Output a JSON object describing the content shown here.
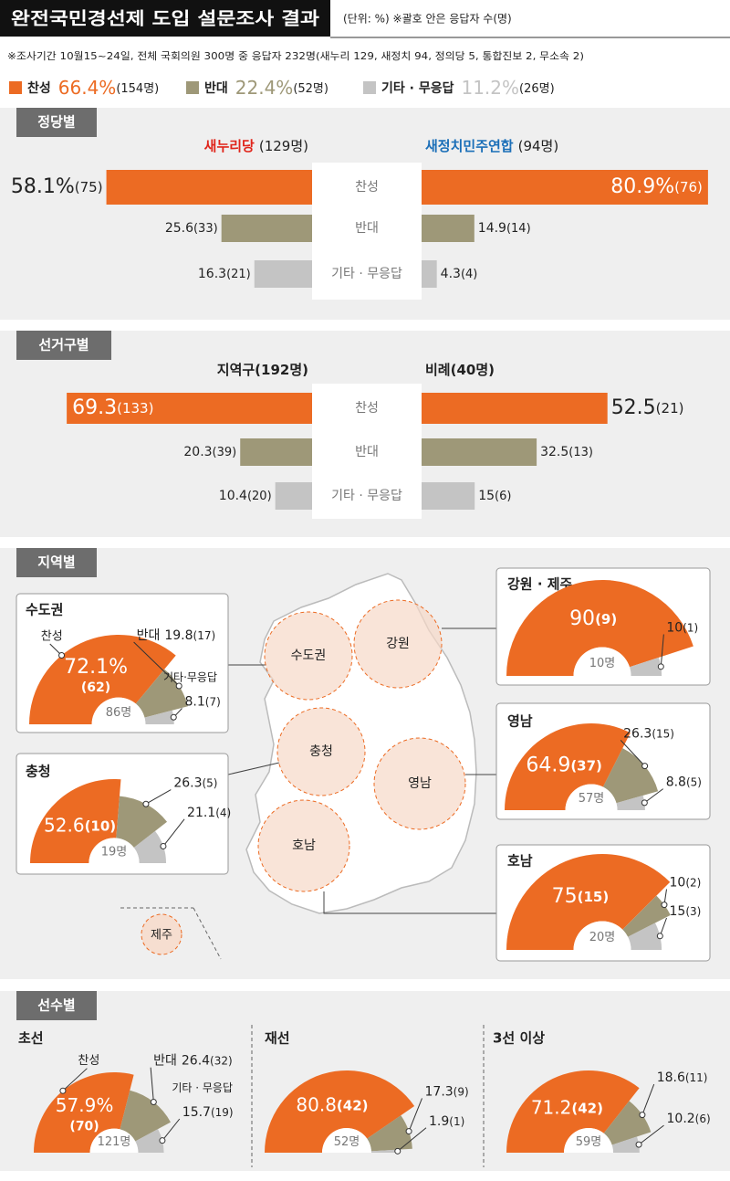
{
  "header": {
    "title": "완전국민경선제 도입 설문조사 결과",
    "unit_note": "(단위: %)  ※괄호 안은 응답자 수(명)",
    "survey_note": "※조사기간 10월15~24일, 전체 국회의원 300명 중 응답자 232명(새누리 129, 새정치 94, 정의당 5, 통합진보 2, 무소속 2)",
    "legend": [
      {
        "name": "찬성",
        "color": "#ec6b23",
        "value_label": "66.4%",
        "count_label": "(154명)"
      },
      {
        "name": "반대",
        "color": "#9e9878",
        "value_label": "22.4%",
        "count_label": "(52명)"
      },
      {
        "name": "기타 · 무응답",
        "color": "#c4c4c4",
        "value_label": "11.2%",
        "count_label": "(26명)"
      }
    ]
  },
  "sections": [
    "정당별",
    "선거구별",
    "지역별",
    "선수별"
  ],
  "map": {
    "labels": [
      "수도권",
      "강원",
      "충청",
      "영남",
      "호남",
      "제주"
    ]
  },
  "chart_data": [
    {
      "type": "butterfly",
      "categories": [
        "찬성",
        "반대",
        "기타 · 무응답"
      ],
      "colors": [
        "#ec6b23",
        "#9e9878",
        "#c4c4c4"
      ],
      "series": [
        {
          "name": "새누리당",
          "count_label": "(129명)",
          "color": "#e0251b",
          "values": [
            58.1,
            25.6,
            16.3
          ],
          "value_labels": [
            "58.1%",
            "25.6",
            "16.3"
          ],
          "count_labels": [
            "(75)",
            "(33)",
            "(21)"
          ]
        },
        {
          "name": "새정치민주연합",
          "count_label": "(94명)",
          "color": "#1b6fb8",
          "values": [
            80.9,
            14.9,
            4.3
          ],
          "value_labels": [
            "80.9%",
            "14.9",
            "4.3"
          ],
          "count_labels": [
            "(76)",
            "(14)",
            "(4)"
          ]
        }
      ]
    },
    {
      "type": "butterfly",
      "categories": [
        "찬성",
        "반대",
        "기타 · 무응답"
      ],
      "colors": [
        "#ec6b23",
        "#9e9878",
        "#c4c4c4"
      ],
      "series": [
        {
          "name": "지역구(192명)",
          "values": [
            69.3,
            20.3,
            10.4
          ],
          "count_labels": [
            "(133)",
            "(39)",
            "(20)"
          ]
        },
        {
          "name": "비례(40명)",
          "values": [
            52.5,
            32.5,
            15
          ],
          "count_labels": [
            "(21)",
            "(13)",
            "(6)"
          ]
        }
      ]
    },
    {
      "type": "half-donut",
      "title": "수도권",
      "categories": [
        "찬성",
        "반대",
        "기타·무응답"
      ],
      "colors": [
        "#ec6b23",
        "#9e9878",
        "#c4c4c4"
      ],
      "values": [
        72.1,
        19.8,
        8.1
      ],
      "value_labels": [
        "72.1%",
        "19.8",
        "8.1"
      ],
      "count_labels": [
        "(62)",
        "(17)",
        "(7)"
      ],
      "total_label": "86명"
    },
    {
      "type": "half-donut",
      "title": "강원 · 제주",
      "colors": [
        "#ec6b23",
        "#c4c4c4"
      ],
      "values": [
        90,
        10
      ],
      "count_labels": [
        "(9)",
        "(1)"
      ],
      "total_label": "10명"
    },
    {
      "type": "half-donut",
      "title": "충청",
      "colors": [
        "#ec6b23",
        "#9e9878",
        "#c4c4c4"
      ],
      "values": [
        52.6,
        26.3,
        21.1
      ],
      "count_labels": [
        "(10)",
        "(5)",
        "(4)"
      ],
      "total_label": "19명"
    },
    {
      "type": "half-donut",
      "title": "영남",
      "colors": [
        "#ec6b23",
        "#9e9878",
        "#c4c4c4"
      ],
      "values": [
        64.9,
        26.3,
        8.8
      ],
      "count_labels": [
        "(37)",
        "(15)",
        "(5)"
      ],
      "total_label": "57명"
    },
    {
      "type": "half-donut",
      "title": "호남",
      "colors": [
        "#ec6b23",
        "#9e9878",
        "#c4c4c4"
      ],
      "values": [
        75,
        10,
        15
      ],
      "count_labels": [
        "(15)",
        "(2)",
        "(3)"
      ],
      "total_label": "20명"
    },
    {
      "type": "half-donut",
      "title": "초선",
      "categories": [
        "찬성",
        "반대",
        "기타 · 무응답"
      ],
      "colors": [
        "#ec6b23",
        "#9e9878",
        "#c4c4c4"
      ],
      "values": [
        57.9,
        26.4,
        15.7
      ],
      "value_labels": [
        "57.9%",
        "26.4",
        "15.7"
      ],
      "count_labels": [
        "(70)",
        "(32)",
        "(19)"
      ],
      "total_label": "121명"
    },
    {
      "type": "half-donut",
      "title": "재선",
      "colors": [
        "#ec6b23",
        "#9e9878",
        "#c4c4c4"
      ],
      "values": [
        80.8,
        17.3,
        1.9
      ],
      "count_labels": [
        "(42)",
        "(9)",
        "(1)"
      ],
      "total_label": "52명"
    },
    {
      "type": "half-donut",
      "title": "3선 이상",
      "colors": [
        "#ec6b23",
        "#9e9878",
        "#c4c4c4"
      ],
      "values": [
        71.2,
        18.6,
        10.2
      ],
      "count_labels": [
        "(42)",
        "(11)",
        "(6)"
      ],
      "total_label": "59명"
    }
  ]
}
